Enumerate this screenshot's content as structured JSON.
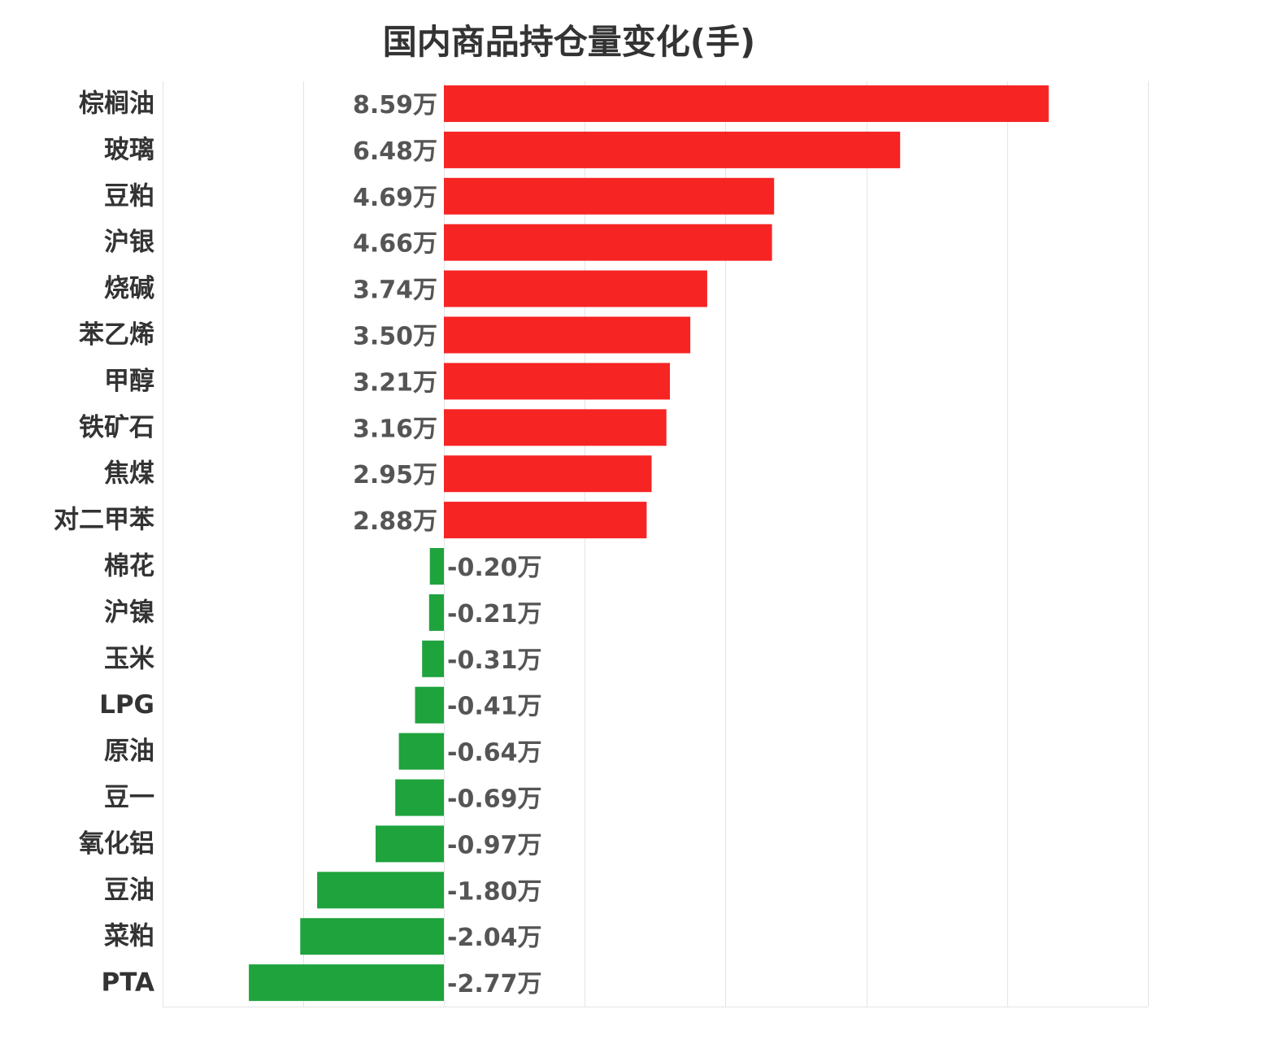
{
  "chart_data": {
    "type": "bar",
    "orientation": "horizontal",
    "title": "国内商品持仓量变化(手)",
    "unit_suffix": "万",
    "categories": [
      "棕榈油",
      "玻璃",
      "豆粕",
      "沪银",
      "烧碱",
      "苯乙烯",
      "甲醇",
      "铁矿石",
      "焦煤",
      "对二甲苯",
      "棉花",
      "沪镍",
      "玉米",
      "LPG",
      "原油",
      "豆一",
      "氧化铝",
      "豆油",
      "菜粕",
      "PTA"
    ],
    "values": [
      8.59,
      6.48,
      4.69,
      4.66,
      3.74,
      3.5,
      3.21,
      3.16,
      2.95,
      2.88,
      -0.2,
      -0.21,
      -0.31,
      -0.41,
      -0.64,
      -0.69,
      -0.97,
      -1.8,
      -2.04,
      -2.77
    ],
    "value_labels": [
      "8.59万",
      "6.48万",
      "4.69万",
      "4.66万",
      "3.74万",
      "3.50万",
      "3.21万",
      "3.16万",
      "2.95万",
      "2.88万",
      "-0.20万",
      "-0.21万",
      "-0.31万",
      "-0.41万",
      "-0.64万",
      "-0.69万",
      "-0.97万",
      "-1.80万",
      "-2.04万",
      "-2.77万"
    ],
    "xlim": [
      -4,
      10
    ],
    "grid": true,
    "colors": {
      "positive": "#f72424",
      "negative": "#1fa33d"
    }
  }
}
